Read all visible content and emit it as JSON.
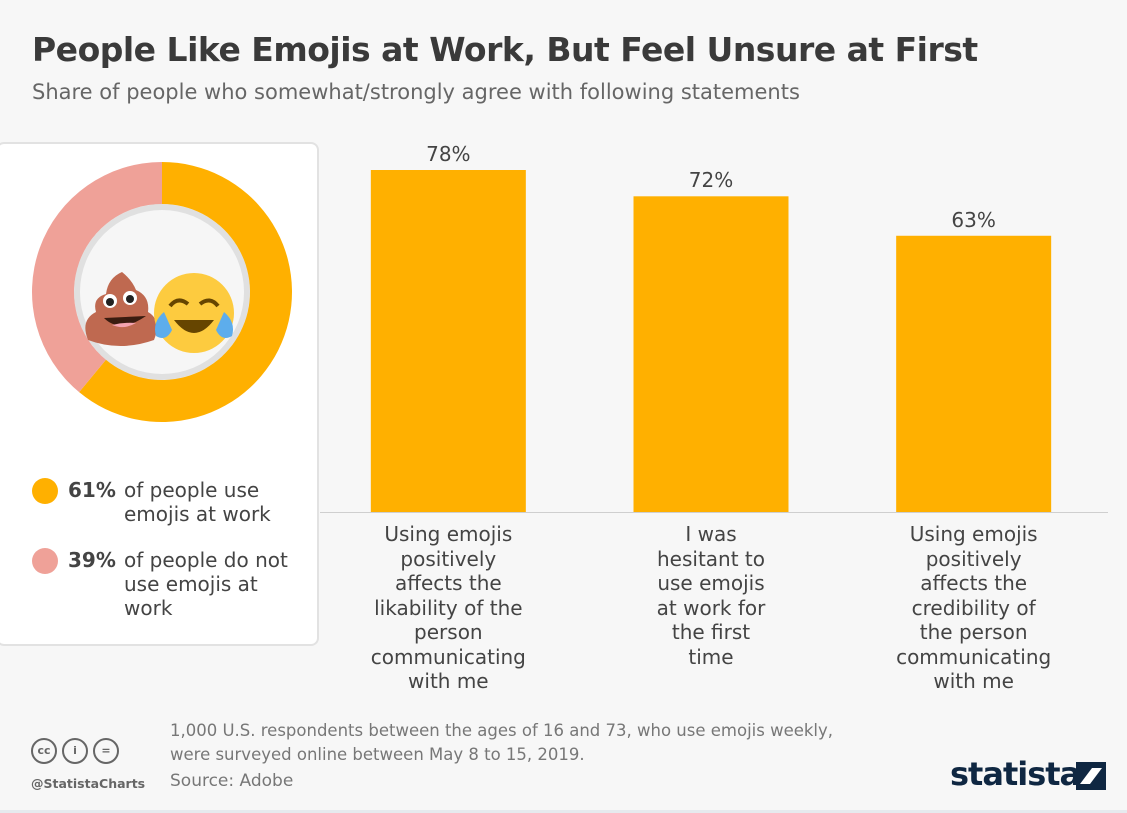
{
  "title": "People Like Emojis at Work, But Feel Unsure at First",
  "subtitle": "Share of people who somewhat/strongly agree with following statements",
  "donut": {
    "segments": [
      {
        "value": 61,
        "pct_label": "61%",
        "text": "of people use emojis at work",
        "color": "#ffb000"
      },
      {
        "value": 39,
        "pct_label": "39%",
        "text": "of people do not use emojis at work",
        "color": "#efa198"
      }
    ],
    "icons": [
      "pile-of-poo-emoji",
      "tears-of-joy-emoji"
    ]
  },
  "chart_data": {
    "type": "bar",
    "categories": [
      "Using emojis positively affects the likability of the person communicating with me",
      "I was hesitant to use emojis at work for the first time",
      "Using emojis positively affects the credibility of the person communicating with me"
    ],
    "values": [
      78,
      72,
      63
    ],
    "value_labels": [
      "78%",
      "72%",
      "63%"
    ],
    "color": "#ffb000",
    "ylim": [
      0,
      100
    ],
    "grid": false,
    "xlabel": "",
    "ylabel": ""
  },
  "footer": {
    "note_line1": "1,000 U.S. respondents between the ages of 16 and 73, who use emojis weekly,",
    "note_line2": "were surveyed online between May 8 to 15, 2019.",
    "source": "Source: Adobe",
    "handle": "@StatistaCharts",
    "cc_labels": [
      "cc",
      "i",
      "="
    ],
    "brand": "statista"
  }
}
